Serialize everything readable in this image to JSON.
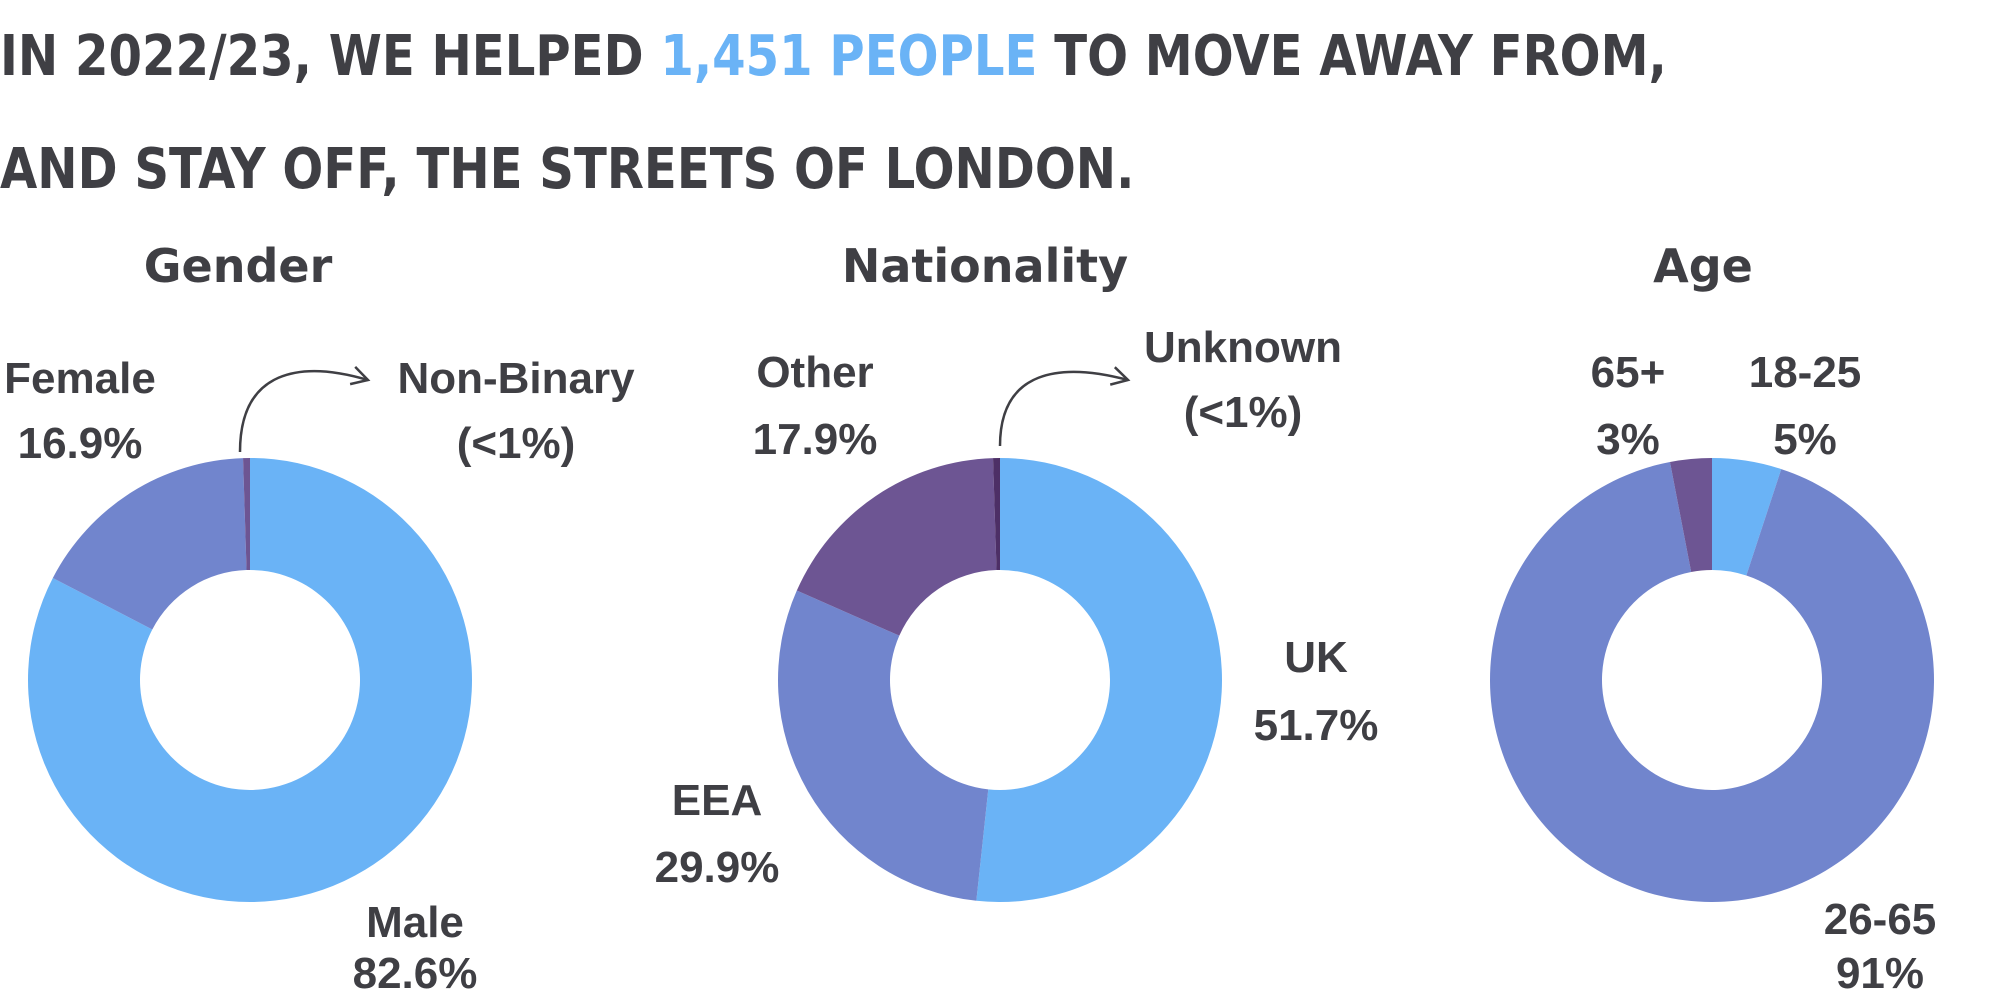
{
  "headline": {
    "prefix": "IN 2022/23, WE HELPED",
    "highlight": "1,451 PEOPLE",
    "suffix": "TO MOVE AWAY FROM, AND STAY OFF, THE STREETS OF LONDON.",
    "highlight_color": "#6ab3f6",
    "text_color": "#3f3f44"
  },
  "chart_data": [
    {
      "type": "pie",
      "title": "Gender",
      "slices": [
        {
          "name": "Male",
          "label": "82.6%",
          "value": 82.6,
          "color": "#6ab3f6"
        },
        {
          "name": "Female",
          "label": "16.9%",
          "value": 16.9,
          "color": "#7185cd"
        },
        {
          "name": "Non-Binary",
          "label": "(<1%)",
          "value": 0.5,
          "color": "#6d5593"
        }
      ]
    },
    {
      "type": "pie",
      "title": "Nationality",
      "slices": [
        {
          "name": "UK",
          "label": "51.7%",
          "value": 51.7,
          "color": "#6ab3f6"
        },
        {
          "name": "EEA",
          "label": "29.9%",
          "value": 29.9,
          "color": "#7185cd"
        },
        {
          "name": "Other",
          "label": "17.9%",
          "value": 17.9,
          "color": "#6d5593"
        },
        {
          "name": "Unknown",
          "label": "(<1%)",
          "value": 0.5,
          "color": "#4d2f66"
        }
      ]
    },
    {
      "type": "pie",
      "title": "Age",
      "slices": [
        {
          "name": "18-25",
          "label": "5%",
          "value": 5,
          "color": "#6ab3f6"
        },
        {
          "name": "26-65",
          "label": "91%",
          "value": 91,
          "color": "#7185cd"
        },
        {
          "name": "65+",
          "label": "3%",
          "value": 3,
          "color": "#6d5593"
        }
      ]
    }
  ]
}
